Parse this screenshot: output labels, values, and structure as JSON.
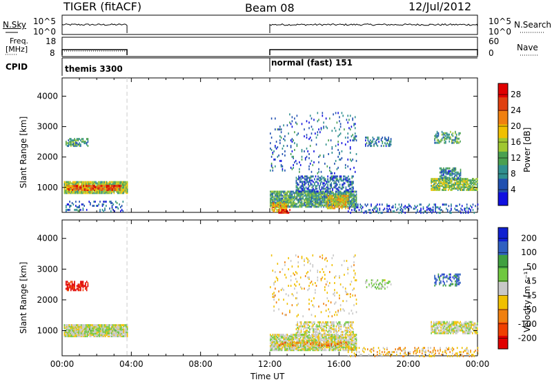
{
  "header": {
    "radar": "TIGER (fitACF)",
    "beam": "Beam 08",
    "date": "12/Jul/2012"
  },
  "status_panels": {
    "nsky_label": "N.Sky",
    "nsky_ticks": [
      "10^5",
      "10^0"
    ],
    "nsearch_label": "N.Search",
    "nsearch_ticks": [
      "10^5",
      "10^0"
    ],
    "freq_label_1": "Freq.",
    "freq_label_2": "[MHz]",
    "freq_ticks": [
      "18",
      "8"
    ],
    "nave_label": "Nave",
    "nave_ticks": [
      "60",
      "0"
    ],
    "cpid_label": "CPID",
    "cpid_segments": [
      {
        "name": "themis 3300",
        "start_hour": 0.0,
        "end_hour": 3.75
      },
      {
        "name": "normal (fast) 151",
        "start_hour": 12.0,
        "end_hour": 24.0
      }
    ]
  },
  "chart_data": [
    {
      "type": "heatmap",
      "title": "",
      "ylabel": "Slant Range [km]",
      "xlabel": "Time UT",
      "xticks": [
        "00:00",
        "04:00",
        "08:00",
        "12:00",
        "16:00",
        "20:00",
        "00:00"
      ],
      "xlim_hours": [
        0,
        24
      ],
      "yticks": [
        1000,
        2000,
        3000,
        4000
      ],
      "ylim": [
        180,
        4600
      ],
      "colorbar": {
        "label": "Power [dB]",
        "ticks": [
          "4",
          "8",
          "12",
          "16",
          "20",
          "24",
          "28"
        ],
        "range": [
          0,
          30
        ],
        "colors": [
          "#1010e0",
          "#2050b0",
          "#2f8f8f",
          "#4aa050",
          "#a0c830",
          "#f0c000",
          "#f08010",
          "#e04010",
          "#e00000"
        ]
      },
      "scatter_regions": [
        {
          "t0": 0.1,
          "t1": 3.75,
          "r0": 850,
          "r1": 1250,
          "value": 14,
          "density": 0.95
        },
        {
          "t0": 0.3,
          "t1": 3.4,
          "r0": 950,
          "r1": 1100,
          "value": 24,
          "density": 0.8
        },
        {
          "t0": 0.2,
          "t1": 1.5,
          "r0": 2400,
          "r1": 2650,
          "value": 10,
          "density": 0.5
        },
        {
          "t0": 0.2,
          "t1": 3.5,
          "r0": 250,
          "r1": 600,
          "value": 6,
          "density": 0.2
        },
        {
          "t0": 12.0,
          "t1": 17.0,
          "r0": 400,
          "r1": 900,
          "value": 10,
          "density": 0.85
        },
        {
          "t0": 12.1,
          "t1": 13.0,
          "r0": 250,
          "r1": 550,
          "value": 20,
          "density": 0.7
        },
        {
          "t0": 12.5,
          "t1": 13.2,
          "r0": 200,
          "r1": 330,
          "value": 28,
          "density": 0.8
        },
        {
          "t0": 15.3,
          "t1": 16.5,
          "r0": 350,
          "r1": 800,
          "value": 18,
          "density": 0.7
        },
        {
          "t0": 13.5,
          "t1": 16.8,
          "r0": 900,
          "r1": 1400,
          "value": 6,
          "density": 0.5
        },
        {
          "t0": 12.0,
          "t1": 17.0,
          "r0": 1500,
          "r1": 3500,
          "value": 6,
          "density": 0.07
        },
        {
          "t0": 16.5,
          "t1": 24.0,
          "r0": 200,
          "r1": 500,
          "value": 5,
          "density": 0.25
        },
        {
          "t0": 21.3,
          "t1": 24.0,
          "r0": 950,
          "r1": 1350,
          "value": 14,
          "density": 0.75
        },
        {
          "t0": 21.8,
          "t1": 23.0,
          "r0": 1300,
          "r1": 1700,
          "value": 8,
          "density": 0.6
        },
        {
          "t0": 17.5,
          "t1": 19.0,
          "r0": 2400,
          "r1": 2700,
          "value": 7,
          "density": 0.4
        },
        {
          "t0": 21.5,
          "t1": 23.0,
          "r0": 2500,
          "r1": 2900,
          "value": 10,
          "density": 0.4
        }
      ]
    },
    {
      "type": "heatmap",
      "title": "",
      "ylabel": "Slant Range [km]",
      "xlabel": "Time UT",
      "xticks": [
        "00:00",
        "04:00",
        "08:00",
        "12:00",
        "16:00",
        "20:00",
        "00:00"
      ],
      "xlim_hours": [
        0,
        24
      ],
      "yticks": [
        1000,
        2000,
        3000,
        4000
      ],
      "ylim": [
        180,
        4600
      ],
      "colorbar": {
        "label": "Velocity [m s⁻¹]",
        "ticks": [
          "200",
          "100",
          "50",
          "15",
          "-15",
          "-50",
          "-100",
          "-200"
        ],
        "range": [
          -250,
          250
        ],
        "colors": [
          "#e00000",
          "#f04000",
          "#f08010",
          "#f0c000",
          "#c8c8c8",
          "#70c840",
          "#40a040",
          "#3060c0",
          "#1020d0"
        ]
      },
      "scatter_regions": [
        {
          "t0": 0.1,
          "t1": 3.75,
          "r0": 850,
          "r1": 1250,
          "value": 0,
          "density": 0.95
        },
        {
          "t0": 0.3,
          "t1": 3.4,
          "r0": 950,
          "r1": 1100,
          "value": 30,
          "density": 0.5
        },
        {
          "t0": 0.2,
          "t1": 1.5,
          "r0": 2350,
          "r1": 2650,
          "value": -220,
          "density": 0.6
        },
        {
          "t0": 12.0,
          "t1": 17.0,
          "r0": 400,
          "r1": 900,
          "value": 0,
          "density": 0.85
        },
        {
          "t0": 12.1,
          "t1": 16.5,
          "r0": 550,
          "r1": 650,
          "value": -120,
          "density": 0.3
        },
        {
          "t0": 13.5,
          "t1": 16.8,
          "r0": 900,
          "r1": 1350,
          "value": 0,
          "density": 0.5
        },
        {
          "t0": 12.0,
          "t1": 17.0,
          "r0": 1500,
          "r1": 3500,
          "value": -40,
          "density": 0.07
        },
        {
          "t0": 16.5,
          "t1": 24.0,
          "r0": 200,
          "r1": 500,
          "value": -60,
          "density": 0.25
        },
        {
          "t0": 21.3,
          "t1": 24.0,
          "r0": 950,
          "r1": 1350,
          "value": 0,
          "density": 0.75
        },
        {
          "t0": 17.5,
          "t1": 19.0,
          "r0": 2400,
          "r1": 2700,
          "value": 30,
          "density": 0.3
        },
        {
          "t0": 21.5,
          "t1": 23.0,
          "r0": 2500,
          "r1": 2900,
          "value": 150,
          "density": 0.4
        }
      ]
    }
  ]
}
